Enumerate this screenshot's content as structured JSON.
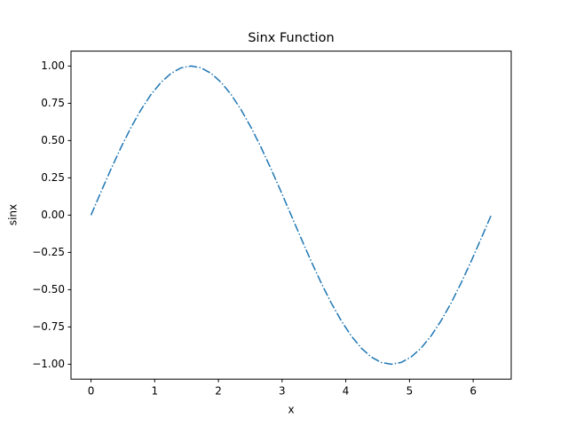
{
  "chart_data": {
    "type": "line",
    "title": "Sinx Function",
    "x_label": "x",
    "y_label": "sinx",
    "x": [
      0,
      0.157,
      0.314,
      0.471,
      0.628,
      0.785,
      0.942,
      1.1,
      1.257,
      1.414,
      1.571,
      1.728,
      1.885,
      2.042,
      2.199,
      2.356,
      2.513,
      2.67,
      2.827,
      2.985,
      3.142,
      3.299,
      3.456,
      3.613,
      3.77,
      3.927,
      4.084,
      4.241,
      4.398,
      4.555,
      4.712,
      4.869,
      5.027,
      5.184,
      5.341,
      5.498,
      5.655,
      5.812,
      5.969,
      6.126,
      6.283
    ],
    "series": [
      {
        "color": "#1f77b4",
        "dash": "dashdot",
        "values": [
          0,
          0.156,
          0.309,
          0.454,
          0.588,
          0.707,
          0.809,
          0.891,
          0.951,
          0.988,
          1.0,
          0.988,
          0.951,
          0.891,
          0.809,
          0.707,
          0.588,
          0.454,
          0.309,
          0.156,
          0,
          -0.156,
          -0.309,
          -0.454,
          -0.588,
          -0.707,
          -0.809,
          -0.891,
          -0.951,
          -0.988,
          -1.0,
          -0.988,
          -0.951,
          -0.891,
          -0.809,
          -0.707,
          -0.588,
          -0.454,
          -0.309,
          -0.156,
          0
        ]
      }
    ],
    "xlim": [
      -0.314,
      6.597
    ],
    "ylim": [
      -1.1,
      1.1
    ],
    "xticks": [
      0,
      1,
      2,
      3,
      4,
      5,
      6
    ],
    "yticks": [
      {
        "value": -1,
        "label": "−1.00"
      },
      {
        "value": -0.75,
        "label": "−0.75"
      },
      {
        "value": -0.5,
        "label": "−0.50"
      },
      {
        "value": -0.25,
        "label": "−0.25"
      },
      {
        "value": 0,
        "label": "0.00"
      },
      {
        "value": 0.25,
        "label": "0.25"
      },
      {
        "value": 0.5,
        "label": "0.50"
      },
      {
        "value": 0.75,
        "label": "0.75"
      },
      {
        "value": 1,
        "label": "1.00"
      }
    ],
    "grid": false
  }
}
